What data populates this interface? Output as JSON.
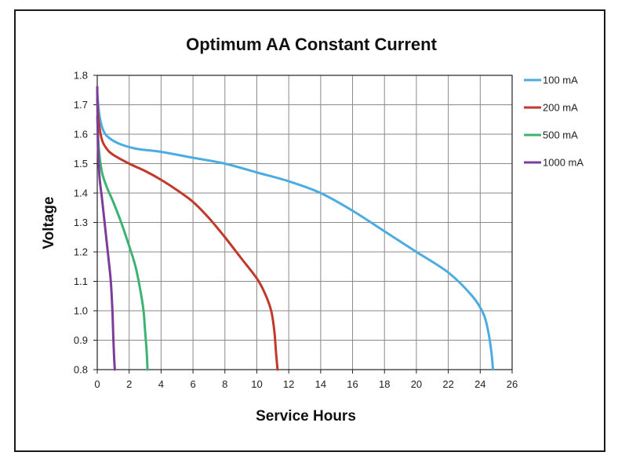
{
  "chart_data": {
    "type": "line",
    "title": "Optimum AA Constant Current",
    "xlabel": "Service Hours",
    "ylabel": "Voltage",
    "xlim": [
      0,
      26
    ],
    "ylim": [
      0.8,
      1.8
    ],
    "xticks": [
      0,
      2,
      4,
      6,
      8,
      10,
      12,
      14,
      16,
      18,
      20,
      22,
      24,
      26
    ],
    "yticks": [
      0.8,
      0.9,
      1.0,
      1.1,
      1.2,
      1.3,
      1.4,
      1.5,
      1.6,
      1.7,
      1.8
    ],
    "xtick_labels": [
      "0",
      "2",
      "4",
      "6",
      "8",
      "10",
      "12",
      "14",
      "16",
      "18",
      "20",
      "22",
      "24",
      "26"
    ],
    "ytick_labels": [
      "0.8",
      "0.9",
      "1.0",
      "1.1",
      "1.2",
      "1.3",
      "1.4",
      "1.5",
      "1.6",
      "1.7",
      "1.8"
    ],
    "grid": true,
    "legend_position": "right",
    "series": [
      {
        "name": "100 mA",
        "color": "#4BACE3",
        "x": [
          0,
          0.15,
          0.4,
          0.8,
          1.5,
          2.5,
          4,
          6,
          8,
          10,
          12,
          14,
          16,
          18,
          20,
          22,
          23.5,
          24.2,
          24.5,
          24.7,
          24.8
        ],
        "y": [
          1.74,
          1.66,
          1.61,
          1.585,
          1.565,
          1.55,
          1.54,
          1.52,
          1.5,
          1.47,
          1.44,
          1.4,
          1.34,
          1.27,
          1.2,
          1.13,
          1.05,
          0.99,
          0.93,
          0.86,
          0.8
        ]
      },
      {
        "name": "200 mA",
        "color": "#C0392B",
        "x": [
          0,
          0.1,
          0.3,
          0.6,
          1.0,
          2.0,
          3,
          4,
          5,
          6,
          7,
          8,
          9,
          10,
          10.5,
          10.9,
          11.1,
          11.2,
          11.3
        ],
        "y": [
          1.72,
          1.64,
          1.58,
          1.55,
          1.53,
          1.5,
          1.475,
          1.445,
          1.41,
          1.37,
          1.315,
          1.25,
          1.18,
          1.11,
          1.06,
          1.0,
          0.93,
          0.86,
          0.8
        ]
      },
      {
        "name": "500 mA",
        "color": "#3CB371",
        "x": [
          0,
          0.1,
          0.3,
          0.6,
          1.0,
          1.5,
          2.0,
          2.4,
          2.7,
          2.9,
          3.0,
          3.1,
          3.15
        ],
        "y": [
          1.66,
          1.55,
          1.47,
          1.42,
          1.37,
          1.3,
          1.22,
          1.15,
          1.07,
          1.0,
          0.93,
          0.86,
          0.8
        ]
      },
      {
        "name": "1000 mA",
        "color": "#7D3C98",
        "x": [
          0,
          0.05,
          0.15,
          0.3,
          0.5,
          0.7,
          0.85,
          0.95,
          1.0,
          1.05,
          1.1
        ],
        "y": [
          1.76,
          1.55,
          1.45,
          1.38,
          1.28,
          1.18,
          1.1,
          1.0,
          0.92,
          0.85,
          0.8
        ]
      }
    ]
  }
}
